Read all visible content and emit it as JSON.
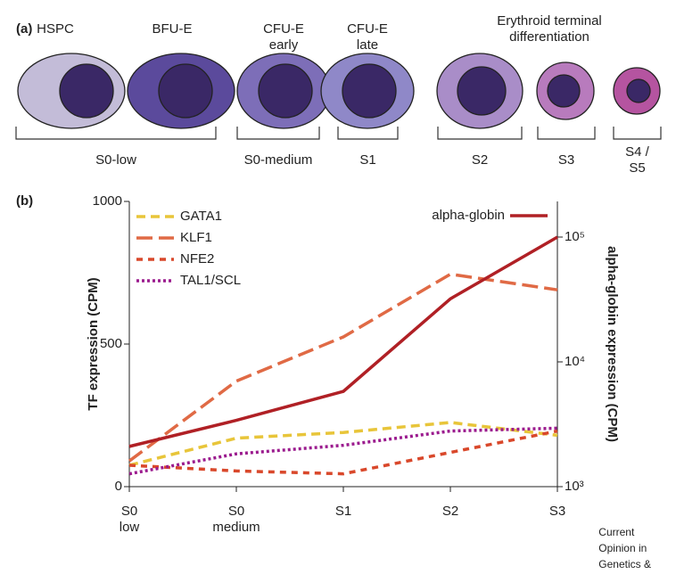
{
  "panel_a": {
    "label": "(a)",
    "headers": [
      "HSPC",
      "BFU-E",
      "CFU-E\nearly",
      "CFU-E\nlate",
      "Erythroid terminal differentiation"
    ],
    "groups": [
      "S0-low",
      "S0-medium",
      "S1",
      "S2",
      "S3",
      "S4 / S5"
    ]
  },
  "chart_data": {
    "type": "line",
    "title": "(b)",
    "categories": [
      "S0\nlow",
      "S0\nmedium",
      "S1",
      "S2",
      "S3"
    ],
    "ylabel": "TF expression (CPM)",
    "y2label": "alpha-globin expression (CPM)",
    "ylim": [
      0,
      1000
    ],
    "yticks": [
      0,
      500,
      1000
    ],
    "y2lim": [
      1000,
      193000
    ],
    "y2scale": "log",
    "y2ticks": [
      {
        "value": 1000,
        "label": "10³"
      },
      {
        "value": 10000,
        "label": "10⁴"
      },
      {
        "value": 100000,
        "label": "10⁵"
      }
    ],
    "legend": "upper left",
    "series": [
      {
        "name": "GATA1",
        "color": "#e8c53a",
        "dash": "10,6",
        "values": [
          75,
          170,
          190,
          225,
          180
        ]
      },
      {
        "name": "KLF1",
        "color": "#e06a45",
        "dash": "18,7",
        "values": [
          90,
          370,
          525,
          745,
          690
        ]
      },
      {
        "name": "NFE2",
        "color": "#d9482b",
        "dash": "7,6",
        "values": [
          75,
          55,
          45,
          120,
          195
        ]
      },
      {
        "name": "TAL1/SCL",
        "color": "#9b1b8e",
        "dash": "3,3",
        "values": [
          45,
          115,
          145,
          195,
          205
        ]
      },
      {
        "name": "alpha-globin",
        "color": "#b02025",
        "dash": "",
        "axis": "y2",
        "values": [
          2100,
          3400,
          5800,
          32000,
          100000
        ]
      }
    ]
  },
  "footer": "Current Opinion in Genetics & Development"
}
